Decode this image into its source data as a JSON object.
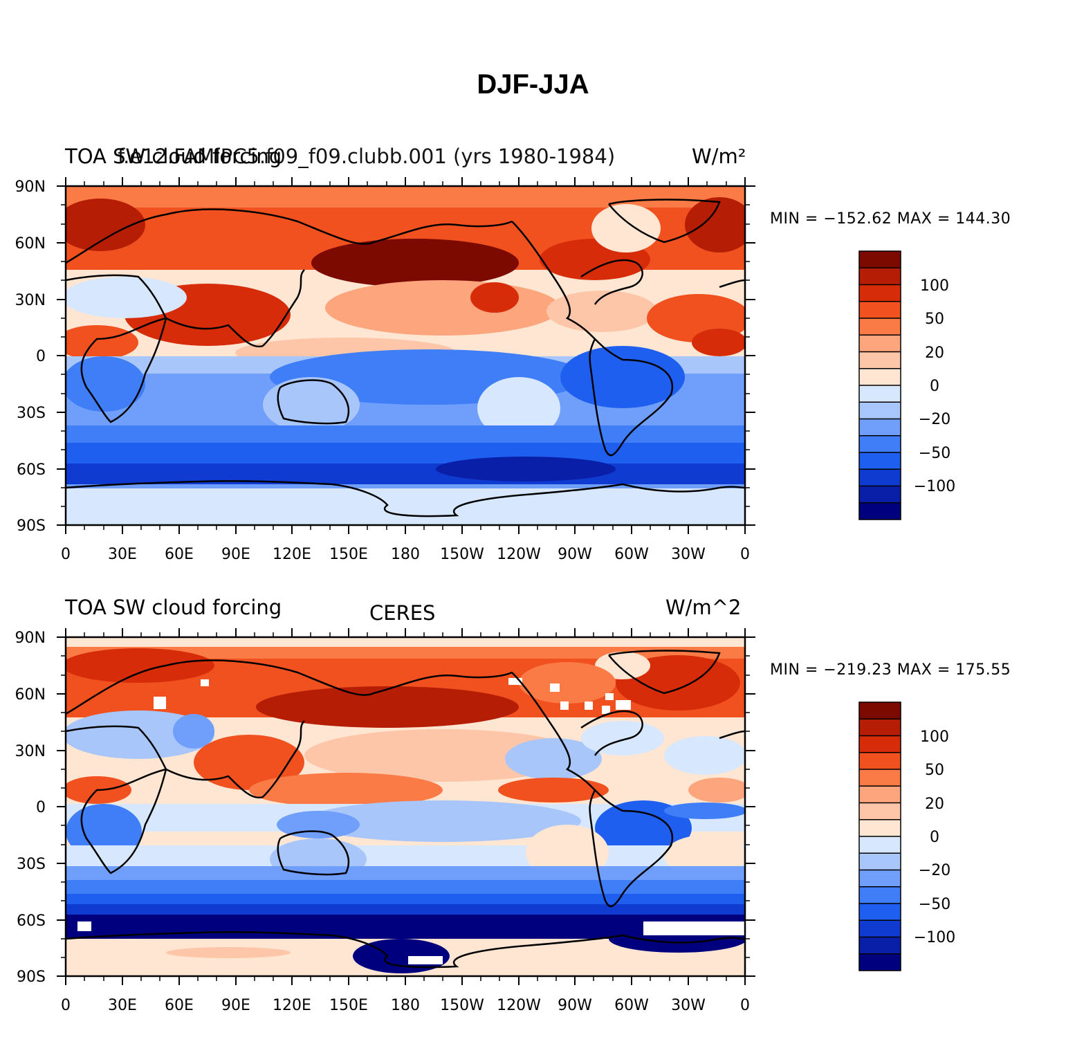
{
  "title": "DJF-JJA",
  "x_ticks": [
    "0",
    "30E",
    "60E",
    "90E",
    "120E",
    "150E",
    "180",
    "150W",
    "120W",
    "90W",
    "60W",
    "30W",
    "0"
  ],
  "y_ticks": [
    "90N",
    "60N",
    "30N",
    "0",
    "30S",
    "60S",
    "90S"
  ],
  "colorbar_labels": [
    "100",
    "50",
    "20",
    "0",
    "−20",
    "−50",
    "−100"
  ],
  "colors": {
    "scale": [
      "#00007f",
      "#0a1fa8",
      "#0f3bd0",
      "#1f5ff0",
      "#3f7ef7",
      "#6f9ffa",
      "#a9c6fb",
      "#d6e7fe",
      "#fee6d2",
      "#fdc6a8",
      "#fda57c",
      "#fb7b47",
      "#f1501f",
      "#d72c0a",
      "#b51e05",
      "#7c0a00"
    ],
    "coast": "#000000",
    "missing": "#ffffff"
  },
  "panels": [
    {
      "left_title": "TOA SW cloud forcing",
      "center_title": "f.e12.FAMIPC5.f09_f09.clubb.001 (yrs 1980-1984)",
      "right_title": "W/m²",
      "min_label": "MIN = −152.62 MAX = 144.30"
    },
    {
      "left_title": "TOA SW cloud forcing",
      "center_title": "CERES",
      "right_title": "W/m^2",
      "min_label": "MIN = −219.23 MAX = 175.55"
    }
  ]
}
